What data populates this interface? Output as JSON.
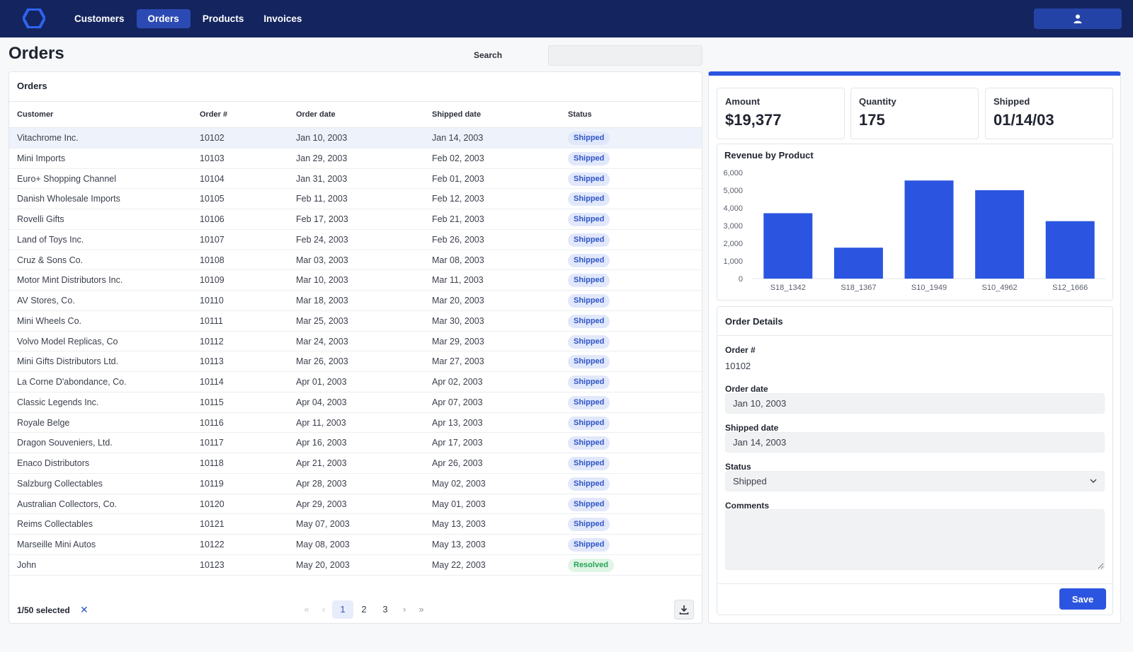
{
  "nav": {
    "items": [
      {
        "label": "Customers",
        "active": false
      },
      {
        "label": "Orders",
        "active": true
      },
      {
        "label": "Products",
        "active": false
      },
      {
        "label": "Invoices",
        "active": false
      }
    ],
    "user_icon": "user-icon",
    "logo_icon": "hexagon-logo-icon"
  },
  "page": {
    "title": "Orders",
    "search_label": "Search",
    "search_value": ""
  },
  "orders": {
    "title": "Orders",
    "columns": [
      "Customer",
      "Order #",
      "Order date",
      "Shipped date",
      "Status"
    ],
    "rows": [
      {
        "customer": "Vitachrome Inc.",
        "order": "10102",
        "order_date": "Jan 10, 2003",
        "shipped_date": "Jan 14, 2003",
        "status": "Shipped",
        "selected": true
      },
      {
        "customer": "Mini Imports",
        "order": "10103",
        "order_date": "Jan 29, 2003",
        "shipped_date": "Feb 02, 2003",
        "status": "Shipped"
      },
      {
        "customer": "Euro+ Shopping Channel",
        "order": "10104",
        "order_date": "Jan 31, 2003",
        "shipped_date": "Feb 01, 2003",
        "status": "Shipped"
      },
      {
        "customer": "Danish Wholesale Imports",
        "order": "10105",
        "order_date": "Feb 11, 2003",
        "shipped_date": "Feb 12, 2003",
        "status": "Shipped"
      },
      {
        "customer": "Rovelli Gifts",
        "order": "10106",
        "order_date": "Feb 17, 2003",
        "shipped_date": "Feb 21, 2003",
        "status": "Shipped"
      },
      {
        "customer": "Land of Toys Inc.",
        "order": "10107",
        "order_date": "Feb 24, 2003",
        "shipped_date": "Feb 26, 2003",
        "status": "Shipped"
      },
      {
        "customer": "Cruz & Sons Co.",
        "order": "10108",
        "order_date": "Mar 03, 2003",
        "shipped_date": "Mar 08, 2003",
        "status": "Shipped"
      },
      {
        "customer": "Motor Mint Distributors Inc.",
        "order": "10109",
        "order_date": "Mar 10, 2003",
        "shipped_date": "Mar 11, 2003",
        "status": "Shipped"
      },
      {
        "customer": "AV Stores, Co.",
        "order": "10110",
        "order_date": "Mar 18, 2003",
        "shipped_date": "Mar 20, 2003",
        "status": "Shipped"
      },
      {
        "customer": "Mini Wheels Co.",
        "order": "10111",
        "order_date": "Mar 25, 2003",
        "shipped_date": "Mar 30, 2003",
        "status": "Shipped"
      },
      {
        "customer": "Volvo Model Replicas, Co",
        "order": "10112",
        "order_date": "Mar 24, 2003",
        "shipped_date": "Mar 29, 2003",
        "status": "Shipped"
      },
      {
        "customer": "Mini Gifts Distributors Ltd.",
        "order": "10113",
        "order_date": "Mar 26, 2003",
        "shipped_date": "Mar 27, 2003",
        "status": "Shipped"
      },
      {
        "customer": "La Corne D'abondance, Co.",
        "order": "10114",
        "order_date": "Apr 01, 2003",
        "shipped_date": "Apr 02, 2003",
        "status": "Shipped"
      },
      {
        "customer": "Classic Legends Inc.",
        "order": "10115",
        "order_date": "Apr 04, 2003",
        "shipped_date": "Apr 07, 2003",
        "status": "Shipped"
      },
      {
        "customer": "Royale Belge",
        "order": "10116",
        "order_date": "Apr 11, 2003",
        "shipped_date": "Apr 13, 2003",
        "status": "Shipped"
      },
      {
        "customer": "Dragon Souveniers, Ltd.",
        "order": "10117",
        "order_date": "Apr 16, 2003",
        "shipped_date": "Apr 17, 2003",
        "status": "Shipped"
      },
      {
        "customer": "Enaco Distributors",
        "order": "10118",
        "order_date": "Apr 21, 2003",
        "shipped_date": "Apr 26, 2003",
        "status": "Shipped"
      },
      {
        "customer": "Salzburg Collectables",
        "order": "10119",
        "order_date": "Apr 28, 2003",
        "shipped_date": "May 02, 2003",
        "status": "Shipped"
      },
      {
        "customer": "Australian Collectors, Co.",
        "order": "10120",
        "order_date": "Apr 29, 2003",
        "shipped_date": "May 01, 2003",
        "status": "Shipped"
      },
      {
        "customer": "Reims Collectables",
        "order": "10121",
        "order_date": "May 07, 2003",
        "shipped_date": "May 13, 2003",
        "status": "Shipped"
      },
      {
        "customer": "Marseille Mini Autos",
        "order": "10122",
        "order_date": "May 08, 2003",
        "shipped_date": "May 13, 2003",
        "status": "Shipped"
      },
      {
        "customer": "John",
        "order": "10123",
        "order_date": "May 20, 2003",
        "shipped_date": "May 22, 2003",
        "status": "Resolved"
      }
    ],
    "footer": {
      "selected_text": "1/50 selected",
      "clear_icon": "close-icon",
      "pages": [
        "1",
        "2",
        "3"
      ],
      "current_page": "1",
      "download_icon": "download-icon"
    }
  },
  "stats": [
    {
      "label": "Amount",
      "value": "$19,377"
    },
    {
      "label": "Quantity",
      "value": "175"
    },
    {
      "label": "Shipped",
      "value": "01/14/03"
    }
  ],
  "chart_data": {
    "type": "bar",
    "title": "Revenue by Product",
    "categories": [
      "S18_1342",
      "S18_1367",
      "S10_1949",
      "S10_4962",
      "S12_1666"
    ],
    "values": [
      3700,
      1750,
      5550,
      5000,
      3250
    ],
    "ylim": [
      0,
      6000
    ],
    "yticks": [
      0,
      1000,
      2000,
      3000,
      4000,
      5000,
      6000
    ],
    "ytick_labels": [
      "0",
      "1,000",
      "2,000",
      "3,000",
      "4,000",
      "5,000",
      "6,000"
    ],
    "color": "#2b55e0",
    "grid": false,
    "xlabel": "",
    "ylabel": ""
  },
  "details": {
    "title": "Order Details",
    "order_label": "Order #",
    "order_value": "10102",
    "order_date_label": "Order date",
    "order_date_value": "Jan 10, 2003",
    "shipped_date_label": "Shipped date",
    "shipped_date_value": "Jan 14, 2003",
    "status_label": "Status",
    "status_value": "Shipped",
    "comments_label": "Comments",
    "comments_value": "",
    "save_label": "Save"
  },
  "colors": {
    "nav_bg": "#14245e",
    "accent": "#2b55e0",
    "shipped_badge": "#2f55c7",
    "resolved_badge": "#27a356"
  }
}
